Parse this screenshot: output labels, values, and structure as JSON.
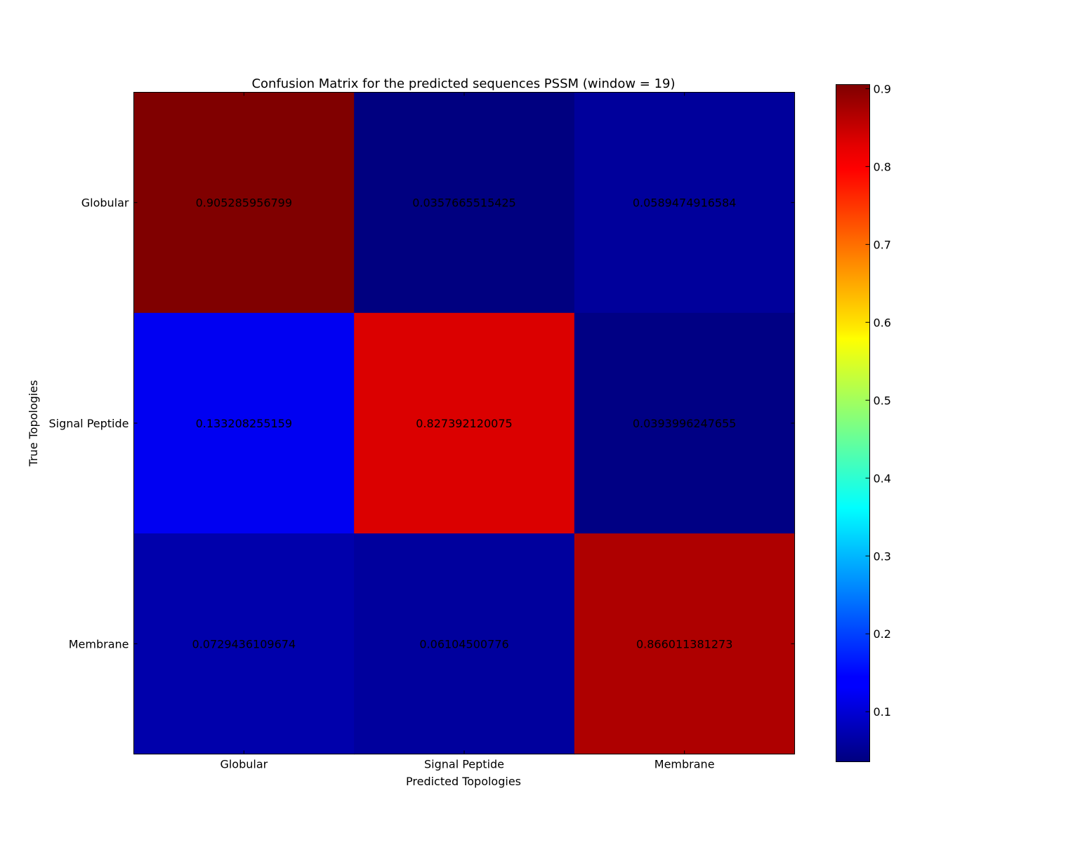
{
  "chart_data": {
    "type": "heatmap",
    "title": "Confusion Matrix for the predicted sequences PSSM (window = 19)",
    "xlabel": "Predicted Topologies",
    "ylabel": "True Topologies",
    "x_categories": [
      "Globular",
      "Signal Peptide",
      "Membrane"
    ],
    "y_categories": [
      "Globular",
      "Signal Peptide",
      "Membrane"
    ],
    "values": [
      [
        0.905285956799,
        0.0357665515425,
        0.0589474916584
      ],
      [
        0.133208255159,
        0.827392120075,
        0.0393996247655
      ],
      [
        0.0729436109674,
        0.06104500776,
        0.866011381273
      ]
    ],
    "value_labels": [
      [
        "0.905285956799",
        "0.0357665515425",
        "0.0589474916584"
      ],
      [
        "0.133208255159",
        "0.827392120075",
        "0.0393996247655"
      ],
      [
        "0.0729436109674",
        "0.06104500776",
        "0.866011381273"
      ]
    ],
    "colormap": "jet",
    "colorbar": {
      "range": [
        0.0357665515425,
        0.905285956799
      ],
      "ticks": [
        0.1,
        0.2,
        0.3,
        0.4,
        0.5,
        0.6,
        0.7,
        0.8,
        0.9
      ],
      "tick_labels": [
        "0.1",
        "0.2",
        "0.3",
        "0.4",
        "0.5",
        "0.6",
        "0.7",
        "0.8",
        "0.9"
      ]
    },
    "grid": false
  }
}
